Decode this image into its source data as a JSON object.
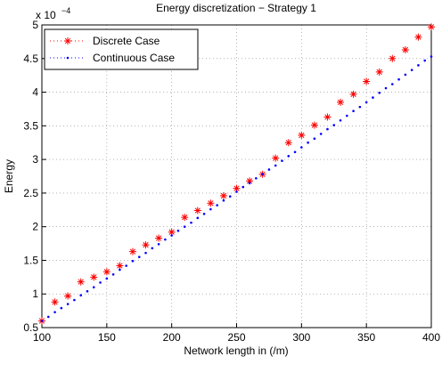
{
  "chart_data": {
    "type": "scatter",
    "title": "Energy discretization − Strategy 1",
    "x_label": "Network length in (/m)",
    "y_label": "Energy",
    "y_multiplier": "x 10",
    "y_multiplier_exponent": "−4",
    "xlim": [
      100,
      400
    ],
    "xticks": [
      100,
      150,
      200,
      250,
      300,
      350,
      400
    ],
    "ylim": [
      0.5,
      5
    ],
    "yticks": [
      0.5,
      1,
      1.5,
      2,
      2.5,
      3,
      3.5,
      4,
      4.5,
      5
    ],
    "grid": true,
    "legend": "upper-left",
    "series": [
      {
        "name": "Discrete Case",
        "color": "#ff0000",
        "marker": "asterisk",
        "x": [
          100,
          110,
          120,
          130,
          140,
          150,
          160,
          170,
          180,
          190,
          200,
          210,
          220,
          230,
          240,
          250,
          260,
          270,
          280,
          290,
          300,
          310,
          320,
          330,
          340,
          350,
          360,
          370,
          380,
          390,
          400
        ],
        "values": [
          0.6,
          0.88,
          0.97,
          1.18,
          1.25,
          1.33,
          1.42,
          1.63,
          1.73,
          1.83,
          1.92,
          2.14,
          2.24,
          2.35,
          2.46,
          2.57,
          2.68,
          2.78,
          3.02,
          3.25,
          3.36,
          3.51,
          3.63,
          3.85,
          3.97,
          4.16,
          4.3,
          4.5,
          4.63,
          4.82,
          4.97
        ]
      },
      {
        "name": "Continuous Case",
        "color": "#0000ff",
        "marker": "dot",
        "x": [
          100,
          105,
          110,
          115,
          120,
          125,
          130,
          135,
          140,
          145,
          150,
          155,
          160,
          165,
          170,
          175,
          180,
          185,
          190,
          195,
          200,
          205,
          210,
          215,
          220,
          225,
          230,
          235,
          240,
          245,
          250,
          255,
          260,
          265,
          270,
          275,
          280,
          285,
          290,
          295,
          300,
          305,
          310,
          315,
          320,
          325,
          330,
          335,
          340,
          345,
          350,
          355,
          360,
          365,
          370,
          375,
          380,
          385,
          390,
          395,
          400
        ],
        "values": [
          0.6,
          0.66,
          0.73,
          0.79,
          0.85,
          0.91,
          0.98,
          1.04,
          1.1,
          1.17,
          1.23,
          1.29,
          1.36,
          1.42,
          1.49,
          1.55,
          1.61,
          1.68,
          1.74,
          1.81,
          1.87,
          1.94,
          2.0,
          2.06,
          2.13,
          2.19,
          2.26,
          2.32,
          2.39,
          2.45,
          2.52,
          2.59,
          2.65,
          2.72,
          2.78,
          2.85,
          2.91,
          2.98,
          3.05,
          3.11,
          3.18,
          3.25,
          3.31,
          3.38,
          3.45,
          3.51,
          3.58,
          3.65,
          3.72,
          3.78,
          3.85,
          3.92,
          3.99,
          4.06,
          4.12,
          4.19,
          4.26,
          4.33,
          4.4,
          4.47,
          4.53
        ]
      }
    ]
  }
}
